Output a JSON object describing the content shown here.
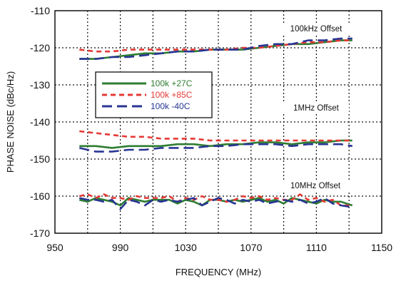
{
  "chart_data": {
    "type": "line",
    "xlabel": "FREQUENCY (MHz)",
    "ylabel": "PHASE NOISE (dBc/Hz)",
    "xlim": [
      950,
      1150
    ],
    "ylim": [
      -170,
      -110
    ],
    "xticks": [
      950,
      990,
      1030,
      1070,
      1110,
      1150
    ],
    "yticks": [
      -110,
      -120,
      -130,
      -140,
      -150,
      -160,
      -170
    ],
    "grid": true,
    "legend_position": "upper-left inside",
    "annotations": [
      "100kHz Offset",
      "1MHz Offset",
      "10MHz Offset"
    ],
    "legend": [
      {
        "label": "100k +27C",
        "color": "#2e7d32",
        "style": "solid"
      },
      {
        "label": "100k +85C",
        "color": "#e53935",
        "style": "short-dash"
      },
      {
        "label": "100k -40C",
        "color": "#283593",
        "style": "long-dash"
      }
    ],
    "series": [
      {
        "name": "100k +27C",
        "group": "100kHz Offset",
        "x": [
          965,
          975,
          985,
          995,
          1005,
          1015,
          1025,
          1035,
          1045,
          1055,
          1065,
          1075,
          1085,
          1095,
          1105,
          1115,
          1125,
          1132
        ],
        "y": [
          -123,
          -123,
          -122.5,
          -122,
          -121.5,
          -121.5,
          -121,
          -121,
          -120.5,
          -120.5,
          -120.5,
          -120,
          -119.5,
          -119,
          -119,
          -118.5,
          -118,
          -118
        ]
      },
      {
        "name": "100k +85C",
        "group": "100kHz Offset",
        "x": [
          965,
          975,
          985,
          995,
          1005,
          1015,
          1025,
          1035,
          1045,
          1055,
          1065,
          1075,
          1085,
          1095,
          1105,
          1115,
          1125,
          1132
        ],
        "y": [
          -120.5,
          -121,
          -121,
          -120.5,
          -120.5,
          -120.5,
          -120.5,
          -120.5,
          -120.5,
          -120.5,
          -120,
          -120,
          -119.5,
          -119,
          -118.5,
          -118.5,
          -118,
          -118
        ]
      },
      {
        "name": "100k -40C",
        "group": "100kHz Offset",
        "x": [
          965,
          975,
          985,
          995,
          1005,
          1015,
          1025,
          1035,
          1045,
          1055,
          1065,
          1075,
          1085,
          1095,
          1105,
          1115,
          1125,
          1132
        ],
        "y": [
          -123,
          -123,
          -122.5,
          -122.5,
          -122,
          -121.5,
          -121,
          -121,
          -120.5,
          -120.5,
          -120.5,
          -119.5,
          -119,
          -119,
          -118,
          -118,
          -117.5,
          -117.5
        ]
      },
      {
        "name": "100k +27C",
        "group": "1MHz Offset",
        "x": [
          965,
          975,
          985,
          995,
          1005,
          1015,
          1025,
          1035,
          1045,
          1055,
          1065,
          1075,
          1085,
          1095,
          1105,
          1115,
          1125,
          1132
        ],
        "y": [
          -146.5,
          -146.5,
          -147,
          -146.5,
          -146.5,
          -146.5,
          -146,
          -146,
          -146.5,
          -146,
          -146,
          -145.5,
          -145.5,
          -146,
          -145.5,
          -145.5,
          -145,
          -145
        ]
      },
      {
        "name": "100k +85C",
        "group": "1MHz Offset",
        "x": [
          965,
          975,
          985,
          995,
          1005,
          1015,
          1025,
          1035,
          1045,
          1055,
          1065,
          1075,
          1085,
          1095,
          1105,
          1115,
          1125,
          1132
        ],
        "y": [
          -142.5,
          -143,
          -143.5,
          -144,
          -144,
          -144.5,
          -144.5,
          -144.5,
          -145,
          -145,
          -145,
          -145,
          -145,
          -145,
          -145,
          -145,
          -145,
          -145
        ]
      },
      {
        "name": "100k -40C",
        "group": "1MHz Offset",
        "x": [
          965,
          975,
          985,
          995,
          1005,
          1015,
          1025,
          1035,
          1045,
          1055,
          1065,
          1075,
          1085,
          1095,
          1105,
          1115,
          1125,
          1132
        ],
        "y": [
          -147,
          -148,
          -148,
          -147.5,
          -147.5,
          -147,
          -147,
          -147,
          -146.5,
          -146.5,
          -146,
          -146,
          -146,
          -146.5,
          -146,
          -146,
          -146,
          -146.5
        ]
      },
      {
        "name": "100k +27C",
        "group": "10MHz Offset",
        "x": [
          965,
          970,
          975,
          980,
          985,
          990,
          995,
          1000,
          1005,
          1010,
          1015,
          1020,
          1025,
          1030,
          1035,
          1040,
          1045,
          1050,
          1055,
          1060,
          1065,
          1070,
          1075,
          1080,
          1085,
          1090,
          1095,
          1100,
          1105,
          1110,
          1115,
          1120,
          1125,
          1132
        ],
        "y": [
          -161,
          -161.5,
          -160.5,
          -161,
          -161.5,
          -162.5,
          -160.5,
          -161,
          -161.5,
          -161,
          -161,
          -161,
          -162,
          -161,
          -161.5,
          -162.5,
          -161,
          -161,
          -161.5,
          -161,
          -161.5,
          -161,
          -160.5,
          -161.5,
          -161,
          -162,
          -160.5,
          -161,
          -161.5,
          -162,
          -161,
          -161.5,
          -161.5,
          -162.5
        ]
      },
      {
        "name": "100k +85C",
        "group": "10MHz Offset",
        "x": [
          965,
          970,
          975,
          980,
          985,
          990,
          995,
          1000,
          1005,
          1010,
          1015,
          1020,
          1025,
          1030,
          1035,
          1040,
          1045,
          1050,
          1055,
          1060,
          1065,
          1070,
          1075,
          1080,
          1085,
          1090,
          1095,
          1100,
          1105,
          1110,
          1115,
          1120,
          1125,
          1132
        ],
        "y": [
          -160,
          -159.5,
          -160.5,
          -159.5,
          -160.5,
          -160.5,
          -161,
          -160,
          -160.5,
          -160.5,
          -160.5,
          -160,
          -161.5,
          -160.5,
          -161,
          -160,
          -161,
          -161,
          -161.5,
          -161,
          -160,
          -160.5,
          -160,
          -161,
          -160.5,
          -161,
          -161,
          -159.5,
          -161,
          -160.5,
          -161.5,
          -161,
          -162.5,
          -162.5
        ]
      },
      {
        "name": "100k -40C",
        "group": "10MHz Offset",
        "x": [
          965,
          970,
          975,
          980,
          985,
          990,
          995,
          1000,
          1005,
          1010,
          1015,
          1020,
          1025,
          1030,
          1035,
          1040,
          1045,
          1050,
          1055,
          1060,
          1065,
          1070,
          1075,
          1080,
          1085,
          1090,
          1095,
          1100,
          1105,
          1110,
          1115,
          1120,
          1125,
          1132
        ],
        "y": [
          -160.5,
          -161,
          -161,
          -161.5,
          -161,
          -163.5,
          -161,
          -161.5,
          -162.5,
          -161,
          -161.5,
          -161,
          -161.5,
          -161,
          -160.5,
          -162.5,
          -161.5,
          -160.5,
          -161,
          -162,
          -161,
          -161.5,
          -161,
          -162,
          -161.5,
          -161,
          -161.5,
          -161,
          -162,
          -161.5,
          -160.5,
          -162,
          -162.5,
          -163
        ]
      }
    ]
  }
}
